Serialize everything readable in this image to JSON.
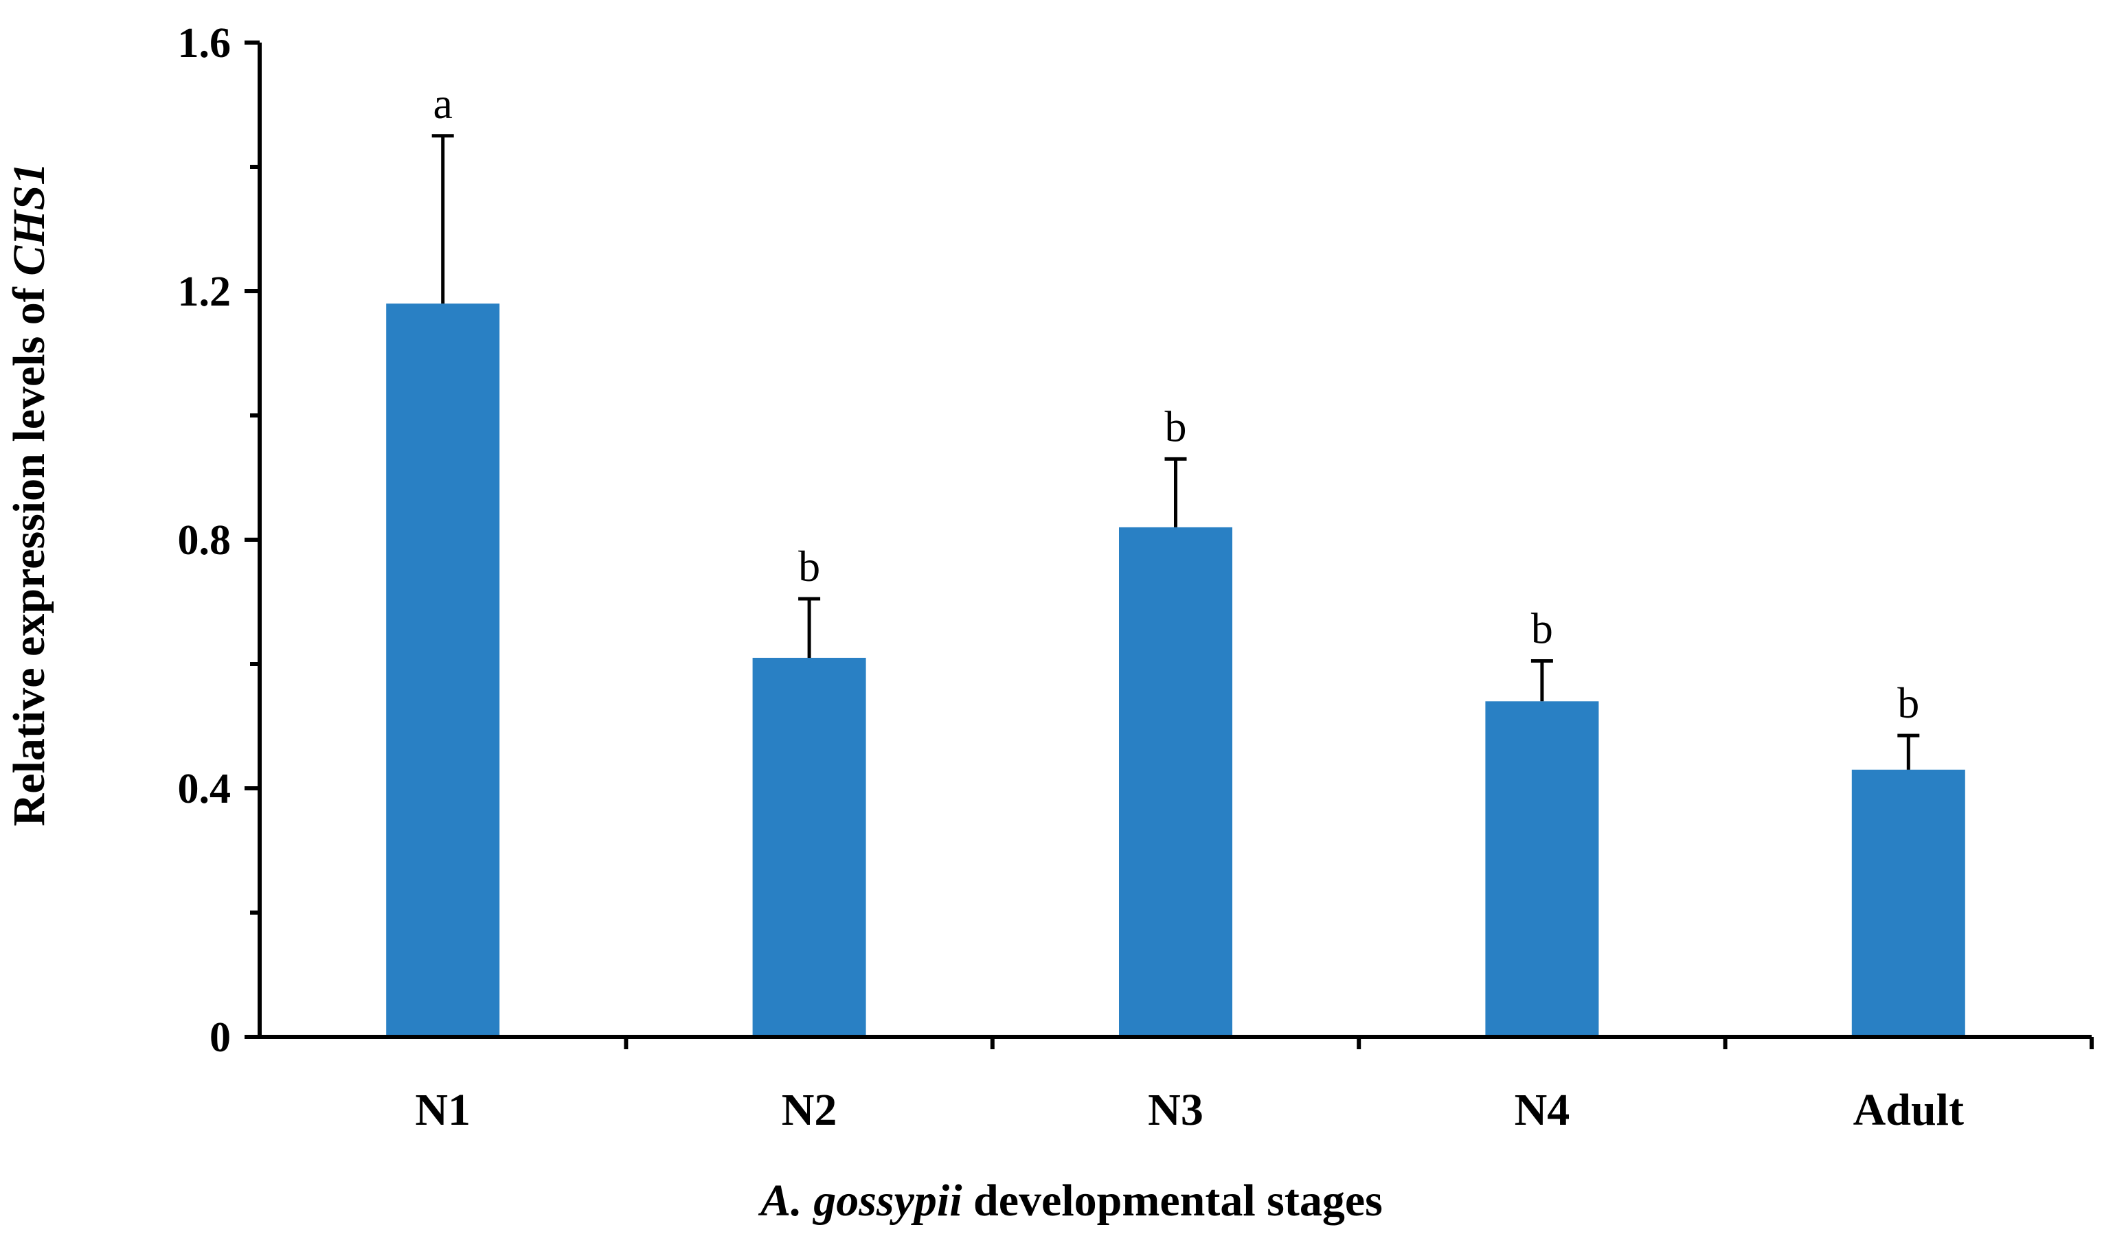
{
  "chart_data": {
    "type": "bar",
    "categories": [
      "N1",
      "N2",
      "N3",
      "N4",
      "Adult"
    ],
    "values": [
      1.18,
      0.61,
      0.82,
      0.54,
      0.43
    ],
    "errors": [
      0.27,
      0.095,
      0.11,
      0.065,
      0.055
    ],
    "significance": [
      "a",
      "b",
      "b",
      "b",
      "b"
    ],
    "ylim": [
      0,
      1.6
    ],
    "y_ticks": [
      0,
      0.4,
      0.8,
      1.2,
      1.6
    ],
    "y_tick_labels": [
      "0",
      "0.4",
      "0.8",
      "1.2",
      "1.6"
    ],
    "ylabel_prefix": "Relative expression levels of ",
    "ylabel_gene": "CHS1",
    "xlabel_species": "A. gossypii",
    "xlabel_suffix": " developmental stages",
    "bar_color": "#2980c4",
    "axis_color": "#000000"
  }
}
